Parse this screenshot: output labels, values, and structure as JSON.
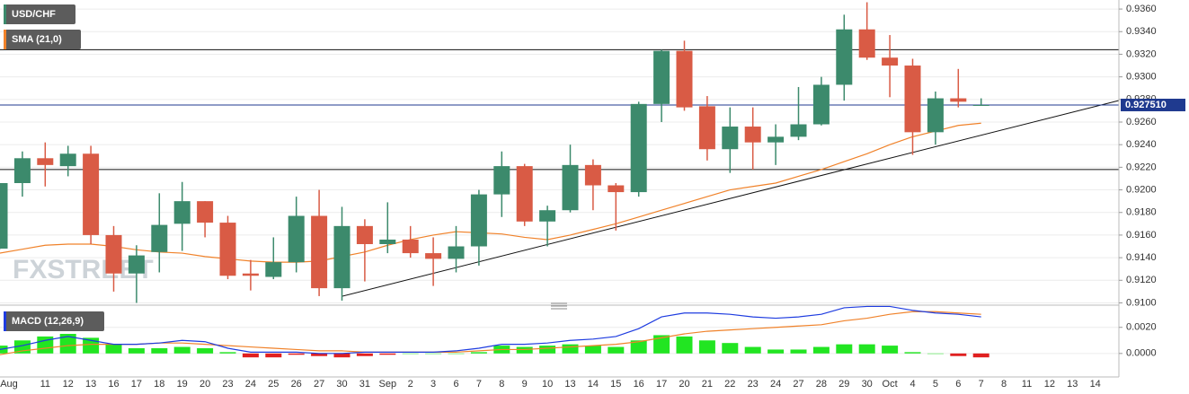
{
  "chart_data": [
    {
      "type": "candlestick",
      "name": "USD/CHF",
      "watermark": "FXSTREET",
      "categories": [
        "Aug",
        null,
        "11",
        "12",
        "13",
        "16",
        "17",
        "18",
        "19",
        "20",
        "23",
        "24",
        "25",
        "26",
        "27",
        "30",
        "31",
        "Sep",
        "2",
        "3",
        "6",
        "7",
        "8",
        "9",
        "10",
        "13",
        "14",
        "15",
        "16",
        "17",
        "20",
        "21",
        "22",
        "23",
        "24",
        "27",
        "28",
        "29",
        "30",
        "Oct",
        "4",
        "5",
        "6",
        "7",
        "8",
        "11",
        "12",
        "13",
        "14"
      ],
      "open": [
        0.9148,
        0.9206,
        0.9228,
        0.9221,
        0.9232,
        0.916,
        0.9126,
        0.9145,
        0.917,
        0.919,
        0.9171,
        0.9126,
        0.9123,
        0.9136,
        0.9177,
        0.9113,
        0.9168,
        0.9152,
        0.9156,
        0.9144,
        0.9139,
        0.915,
        0.9196,
        0.9221,
        0.9172,
        0.9182,
        0.9222,
        0.9204,
        0.9198,
        0.9276,
        0.9323,
        0.9274,
        0.9236,
        0.9256,
        0.9242,
        0.9247,
        0.9258,
        0.9293,
        0.9342,
        0.9317,
        0.931,
        0.9251,
        0.9281,
        0.9275,
        null,
        null,
        null,
        null,
        null
      ],
      "high": [
        0.9206,
        0.9234,
        0.9242,
        0.9239,
        0.9239,
        0.9168,
        0.9151,
        0.9197,
        0.9207,
        0.919,
        0.9177,
        0.9138,
        0.9158,
        0.9194,
        0.92,
        0.9185,
        0.9174,
        0.9189,
        0.9168,
        0.9158,
        0.9168,
        0.92,
        0.9234,
        0.9223,
        0.9186,
        0.924,
        0.9227,
        0.9206,
        0.9278,
        0.9324,
        0.9332,
        0.9283,
        0.9273,
        0.9273,
        0.9258,
        0.9291,
        0.93,
        0.9355,
        0.9366,
        0.9337,
        0.9316,
        0.9287,
        0.9307,
        0.9281,
        null,
        null,
        null,
        null,
        null
      ],
      "low": [
        0.9147,
        0.9194,
        0.9203,
        0.9212,
        0.9152,
        0.911,
        0.91,
        0.9127,
        0.9146,
        0.9158,
        0.9121,
        0.9111,
        0.9121,
        0.9127,
        0.9106,
        0.9102,
        0.9119,
        0.9144,
        0.914,
        0.9115,
        0.9127,
        0.9133,
        0.9176,
        0.9168,
        0.915,
        0.918,
        0.9182,
        0.9164,
        0.9194,
        0.926,
        0.927,
        0.9226,
        0.9215,
        0.9218,
        0.9222,
        0.9244,
        0.9257,
        0.9279,
        0.9315,
        0.9282,
        0.9231,
        0.924,
        0.9273,
        0.9275,
        null,
        null,
        null,
        null,
        null
      ],
      "close": [
        0.9206,
        0.9228,
        0.9222,
        0.9232,
        0.916,
        0.9126,
        0.9142,
        0.9169,
        0.919,
        0.9171,
        0.9124,
        0.9124,
        0.9136,
        0.9177,
        0.9113,
        0.9168,
        0.9152,
        0.9156,
        0.9144,
        0.9139,
        0.915,
        0.9196,
        0.9221,
        0.9172,
        0.9182,
        0.9222,
        0.9204,
        0.9198,
        0.9276,
        0.9323,
        0.9273,
        0.9236,
        0.9256,
        0.9242,
        0.9247,
        0.9258,
        0.9293,
        0.9342,
        0.9317,
        0.931,
        0.9251,
        0.9281,
        0.9278,
        0.92751,
        null,
        null,
        null,
        null,
        null
      ],
      "up_color": "#3c8a6c",
      "down_color": "#d95b45",
      "series": [
        {
          "name": "SMA (21,0)",
          "color": "#f0822a",
          "values": [
            0.9144,
            0.91475,
            0.9151,
            0.9152,
            0.9152,
            0.915,
            0.9147,
            0.9145,
            0.9144,
            0.9141,
            0.9139,
            0.9137,
            0.9136,
            0.9136,
            0.9137,
            0.9141,
            0.9145,
            0.9151,
            0.9156,
            0.916,
            0.9163,
            0.9162,
            0.9161,
            0.9158,
            0.9156,
            0.916,
            0.9165,
            0.917,
            0.9176,
            0.9182,
            0.9188,
            0.9194,
            0.92,
            0.9203,
            0.9206,
            0.9212,
            0.9218,
            0.9225,
            0.9232,
            0.924,
            0.9247,
            0.9252,
            0.9257,
            0.9259,
            null,
            null,
            null,
            null,
            null
          ]
        }
      ],
      "levels": [
        0.9324,
        0.9218
      ],
      "price_line": {
        "value": 0.92751,
        "label": "0.927510",
        "color": "#1f3a8f"
      },
      "ylim": [
        0.9098,
        0.9368
      ],
      "yticks": [
        {
          "value": 0.91,
          "label": "0.9100"
        },
        {
          "value": 0.912,
          "label": "0.9120"
        },
        {
          "value": 0.914,
          "label": "0.9140"
        },
        {
          "value": 0.916,
          "label": "0.9160"
        },
        {
          "value": 0.918,
          "label": "0.9180"
        },
        {
          "value": 0.92,
          "label": "0.9200"
        },
        {
          "value": 0.922,
          "label": "0.9220"
        },
        {
          "value": 0.924,
          "label": "0.9240"
        },
        {
          "value": 0.926,
          "label": "0.9260"
        },
        {
          "value": 0.928,
          "label": "0.9280"
        },
        {
          "value": 0.93,
          "label": "0.9300"
        },
        {
          "value": 0.932,
          "label": "0.9320"
        },
        {
          "value": 0.934,
          "label": "0.9340"
        },
        {
          "value": 0.936,
          "label": "0.9360"
        }
      ],
      "grid": true
    },
    {
      "type": "macd",
      "title": "MACD (12,26,9)",
      "macd_color": "#1e3ce0",
      "signal_color": "#f0822a",
      "pos_color": "#22e522",
      "neg_color": "#e02020",
      "macd": [
        0.0003,
        0.0006,
        0.001,
        0.0013,
        0.001,
        0.0007,
        0.0007,
        0.0008,
        0.001,
        0.0009,
        0.0004,
        0.0001,
        0.0001,
        0.0001,
        0.0,
        0.0,
        0.0001,
        0.0001,
        0.0001,
        0.0001,
        0.0002,
        0.0004,
        0.0007,
        0.0007,
        0.0008,
        0.001,
        0.0011,
        0.0013,
        0.0019,
        0.0028,
        0.0031,
        0.0031,
        0.003,
        0.0028,
        0.0027,
        0.0028,
        0.003,
        0.0035,
        0.0036,
        0.0036,
        0.0033,
        0.0031,
        0.003,
        0.0028,
        null,
        null,
        null,
        null,
        null
      ],
      "signal": [
        -0.0001,
        0.0002,
        0.0004,
        0.0006,
        0.0007,
        0.0007,
        0.0007,
        0.0008,
        0.0008,
        0.0007,
        0.0006,
        0.0005,
        0.0004,
        0.0003,
        0.0002,
        0.0002,
        0.0001,
        0.0001,
        0.0001,
        0.0001,
        0.0001,
        0.0002,
        0.0003,
        0.0003,
        0.0004,
        0.0005,
        0.0006,
        0.0007,
        0.0009,
        0.0012,
        0.0015,
        0.0017,
        0.0018,
        0.0019,
        0.002,
        0.0021,
        0.0022,
        0.0025,
        0.0027,
        0.003,
        0.0032,
        0.0032,
        0.0031,
        0.003,
        null,
        null,
        null,
        null,
        null
      ],
      "histogram": [
        0.0006,
        0.001,
        0.0013,
        0.0015,
        0.0012,
        0.0007,
        0.0004,
        0.0004,
        0.0005,
        0.0004,
        0.0001,
        -0.0003,
        -0.0003,
        -0.0001,
        -0.0002,
        -0.0003,
        -0.0002,
        -0.0001,
        0.0,
        0.0,
        0.0,
        0.0001,
        0.0006,
        0.0005,
        0.0006,
        0.0007,
        0.0006,
        0.0005,
        0.001,
        0.0014,
        0.0013,
        0.001,
        0.0008,
        0.0005,
        0.0003,
        0.0003,
        0.0005,
        0.0007,
        0.0007,
        0.0006,
        0.0001,
        0.0,
        -0.0002,
        -0.0003,
        null,
        null,
        null,
        null,
        null
      ],
      "ylim": [
        -0.0018,
        0.0037
      ],
      "yticks": [
        {
          "value": 0,
          "label": "0.0000"
        },
        {
          "value": 0.002,
          "label": "0.0020"
        }
      ]
    }
  ]
}
